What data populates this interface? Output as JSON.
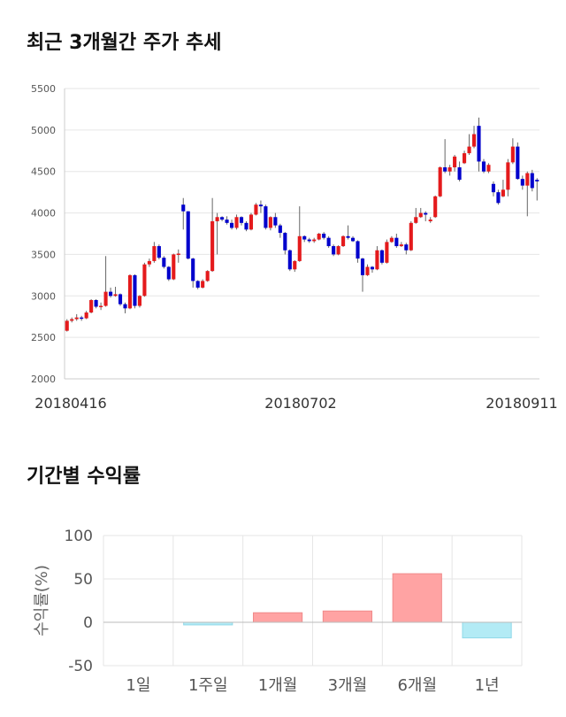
{
  "section1_title": "최근 3개월간 주가 추세",
  "section2_title": "기간별 수익률",
  "colors": {
    "up": "#e41a1c",
    "down": "#0000cc",
    "wick": "#666666",
    "pos_bar": "#ffa3a3",
    "neg_bar": "#b3ebf5",
    "grid": "#e6e6e6"
  },
  "chart_data": [
    {
      "type": "candlestick",
      "ylim": [
        2000,
        5500
      ],
      "y_ticks": [
        "2000",
        "2500",
        "3000",
        "3500",
        "4000",
        "4500",
        "5000",
        "5500"
      ],
      "x_labels": [
        "20180416",
        "20180702",
        "20180911"
      ],
      "candles": [
        [
          2580,
          2700,
          2570,
          2720
        ],
        [
          2700,
          2720,
          2680,
          2740
        ],
        [
          2720,
          2740,
          2700,
          2780
        ],
        [
          2740,
          2730,
          2700,
          2760
        ],
        [
          2730,
          2800,
          2720,
          2820
        ],
        [
          2800,
          2950,
          2790,
          2960
        ],
        [
          2950,
          2870,
          2850,
          2960
        ],
        [
          2870,
          2880,
          2830,
          2920
        ],
        [
          2880,
          3050,
          2870,
          3480
        ],
        [
          3050,
          3000,
          2980,
          3100
        ],
        [
          3000,
          3020,
          2990,
          3110
        ],
        [
          3020,
          2900,
          2880,
          3030
        ],
        [
          2900,
          2850,
          2790,
          2920
        ],
        [
          2850,
          3250,
          2840,
          3260
        ],
        [
          3250,
          2880,
          2850,
          3260
        ],
        [
          2880,
          3000,
          2860,
          3010
        ],
        [
          3000,
          3380,
          2990,
          3400
        ],
        [
          3380,
          3420,
          3350,
          3450
        ],
        [
          3420,
          3600,
          3400,
          3650
        ],
        [
          3600,
          3460,
          3440,
          3620
        ],
        [
          3460,
          3350,
          3330,
          3480
        ],
        [
          3350,
          3200,
          3180,
          3360
        ],
        [
          3200,
          3500,
          3190,
          3510
        ],
        [
          3500,
          3510,
          3400,
          3560
        ],
        [
          4100,
          4020,
          3800,
          4180
        ],
        [
          4020,
          3450,
          3440,
          4020
        ],
        [
          3450,
          3180,
          3100,
          3460
        ],
        [
          3180,
          3100,
          3080,
          3190
        ],
        [
          3100,
          3180,
          3090,
          3200
        ],
        [
          3180,
          3300,
          3170,
          3310
        ],
        [
          3300,
          3900,
          3290,
          4180
        ],
        [
          3900,
          3950,
          3500,
          4000
        ],
        [
          3950,
          3920,
          3900,
          3960
        ],
        [
          3920,
          3880,
          3860,
          3960
        ],
        [
          3880,
          3820,
          3800,
          3920
        ],
        [
          3820,
          3950,
          3800,
          3980
        ],
        [
          3950,
          3880,
          3850,
          3960
        ],
        [
          3880,
          3800,
          3780,
          3900
        ],
        [
          3800,
          3980,
          3790,
          4000
        ],
        [
          3980,
          4100,
          3970,
          4120
        ],
        [
          4100,
          4080,
          4000,
          4150
        ],
        [
          4080,
          3820,
          3800,
          4100
        ],
        [
          3820,
          3950,
          3790,
          3960
        ],
        [
          3950,
          3850,
          3820,
          4000
        ],
        [
          3850,
          3760,
          3700,
          3870
        ],
        [
          3760,
          3550,
          3500,
          3770
        ],
        [
          3550,
          3320,
          3300,
          3560
        ],
        [
          3320,
          3420,
          3290,
          3430
        ],
        [
          3420,
          3720,
          3410,
          4080
        ],
        [
          3720,
          3680,
          3650,
          3730
        ],
        [
          3680,
          3660,
          3640,
          3700
        ],
        [
          3660,
          3680,
          3640,
          3700
        ],
        [
          3680,
          3750,
          3670,
          3760
        ],
        [
          3750,
          3700,
          3680,
          3770
        ],
        [
          3700,
          3600,
          3580,
          3720
        ],
        [
          3600,
          3500,
          3480,
          3620
        ],
        [
          3500,
          3600,
          3490,
          3610
        ],
        [
          3600,
          3720,
          3590,
          3730
        ],
        [
          3720,
          3700,
          3680,
          3850
        ],
        [
          3700,
          3660,
          3650,
          3720
        ],
        [
          3660,
          3450,
          3400,
          3670
        ],
        [
          3450,
          3250,
          3050,
          3460
        ],
        [
          3250,
          3350,
          3240,
          3380
        ],
        [
          3350,
          3320,
          3280,
          3360
        ],
        [
          3320,
          3550,
          3310,
          3600
        ],
        [
          3550,
          3400,
          3380,
          3560
        ],
        [
          3400,
          3650,
          3390,
          3680
        ],
        [
          3650,
          3700,
          3640,
          3720
        ],
        [
          3700,
          3600,
          3580,
          3750
        ],
        [
          3600,
          3620,
          3590,
          3650
        ],
        [
          3620,
          3550,
          3500,
          3640
        ],
        [
          3550,
          3880,
          3540,
          3900
        ],
        [
          3880,
          3950,
          3870,
          4060
        ],
        [
          3950,
          4000,
          3940,
          4060
        ],
        [
          4000,
          3980,
          3900,
          4020
        ],
        [
          3900,
          3920,
          3880,
          3950
        ],
        [
          3950,
          4200,
          3940,
          4210
        ],
        [
          4200,
          4550,
          4190,
          4560
        ],
        [
          4550,
          4500,
          4480,
          4890
        ],
        [
          4500,
          4550,
          4450,
          4580
        ],
        [
          4550,
          4680,
          4500,
          4700
        ],
        [
          4550,
          4400,
          4380,
          4620
        ],
        [
          4600,
          4720,
          4590,
          4750
        ],
        [
          4720,
          4800,
          4700,
          4950
        ],
        [
          4800,
          4950,
          4780,
          5050
        ],
        [
          5050,
          4620,
          4500,
          5150
        ],
        [
          4620,
          4500,
          4480,
          4650
        ],
        [
          4500,
          4580,
          4480,
          4600
        ],
        [
          4350,
          4250,
          4200,
          4380
        ],
        [
          4250,
          4120,
          4100,
          4280
        ],
        [
          4200,
          4280,
          4190,
          4400
        ],
        [
          4280,
          4610,
          4200,
          4650
        ],
        [
          4610,
          4800,
          4590,
          4900
        ],
        [
          4800,
          4410,
          4400,
          4850
        ],
        [
          4410,
          4330,
          4280,
          4450
        ],
        [
          4330,
          4480,
          3960,
          4500
        ],
        [
          4480,
          4300,
          4260,
          4520
        ],
        [
          4400,
          4380,
          4150,
          4420
        ]
      ]
    },
    {
      "type": "bar",
      "ylabel": "수익률(%)",
      "ylim": [
        -50,
        100
      ],
      "y_ticks": [
        "100",
        "50",
        "0",
        "-50"
      ],
      "categories": [
        "1일",
        "1주일",
        "1개월",
        "3개월",
        "6개월",
        "1년"
      ],
      "values": [
        0,
        -3,
        11,
        13,
        56,
        -18
      ]
    }
  ]
}
